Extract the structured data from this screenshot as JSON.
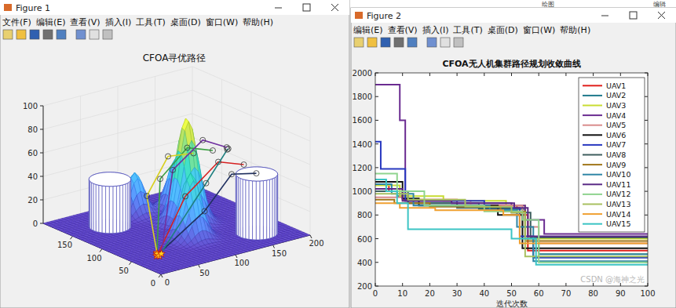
{
  "windows": [
    {
      "title": "Figure 1",
      "menu": [
        "文件(F)",
        "编辑(E)",
        "查看(V)",
        "插入(I)",
        "工具(T)",
        "桌面(D)",
        "窗口(W)",
        "帮助(H)"
      ]
    },
    {
      "title": "Figure 2",
      "menu": [
        "编辑(E)",
        "查看(V)",
        "插入(I)",
        "工具(T)",
        "桌面(D)",
        "窗口(W)",
        "帮助(H)"
      ]
    }
  ],
  "background_texts": [
    "绘图",
    "编辑"
  ],
  "watermark": "CSDN @海神之光",
  "chart_data": [
    {
      "type": "surface3d",
      "title": "CFOA寻优路径",
      "xlim": [
        0,
        200
      ],
      "xticks": [
        0,
        50,
        100,
        150,
        200
      ],
      "ylim": [
        0,
        200
      ],
      "yticks": [
        0,
        50,
        100,
        150
      ],
      "zlim": [
        0,
        100
      ],
      "zticks": [
        0,
        20,
        40,
        60,
        80,
        100
      ],
      "grid": true,
      "marker": "circle",
      "peaks": [
        {
          "x": 120,
          "y": 108,
          "height": 90,
          "spread": 12
        },
        {
          "x": 95,
          "y": 70,
          "height": 55,
          "spread": 11
        },
        {
          "x": 140,
          "y": 150,
          "height": 45,
          "spread": 10
        },
        {
          "x": 95,
          "y": 165,
          "height": 35,
          "spread": 10
        }
      ],
      "cylinders": [
        {
          "x": 50,
          "y": 150,
          "radius": 22,
          "height": 40
        },
        {
          "x": 160,
          "y": 40,
          "radius": 22,
          "height": 50
        }
      ],
      "paths": [
        {
          "color": "#d62020",
          "x": [
            35,
            80,
            140,
            190
          ],
          "y": [
            50,
            60,
            80,
            100
          ],
          "z": [
            0,
            40,
            55,
            40
          ]
        },
        {
          "color": "#3aa040",
          "x": [
            38,
            70,
            130,
            180
          ],
          "y": [
            55,
            90,
            120,
            140
          ],
          "z": [
            0,
            50,
            60,
            45
          ]
        },
        {
          "color": "#203060",
          "x": [
            32,
            90,
            150,
            195
          ],
          "y": [
            48,
            40,
            70,
            85
          ],
          "z": [
            0,
            30,
            45,
            35
          ]
        },
        {
          "color": "#d8d020",
          "x": [
            36,
            60,
            120,
            170
          ],
          "y": [
            52,
            100,
            140,
            160
          ],
          "z": [
            0,
            35,
            50,
            40
          ]
        },
        {
          "color": "#208080",
          "x": [
            34,
            100,
            160,
            185
          ],
          "y": [
            46,
            50,
            90,
            120
          ],
          "z": [
            0,
            50,
            60,
            50
          ]
        },
        {
          "color": "#7030a0",
          "x": [
            40,
            75,
            135,
            175
          ],
          "y": [
            50,
            75,
            100,
            110
          ],
          "z": [
            0,
            60,
            70,
            55
          ]
        }
      ]
    },
    {
      "type": "line",
      "title": "CFOA无人机集群路径规划收敛曲线",
      "x_label": "迭代次数",
      "xlim": [
        0,
        100
      ],
      "xticks": [
        0,
        10,
        20,
        30,
        40,
        50,
        60,
        70,
        80,
        90,
        100
      ],
      "ylim": [
        200,
        2000
      ],
      "yticks": [
        200,
        400,
        600,
        800,
        1000,
        1200,
        1400,
        1600,
        1800,
        2000
      ],
      "line_style": "step",
      "legend": "northeast",
      "grid": false,
      "series": [
        {
          "name": "UAV1",
          "color": "#e0201c",
          "x": [
            0,
            5,
            10,
            30,
            52,
            56,
            100
          ],
          "values": [
            1060,
            1000,
            930,
            880,
            800,
            500,
            500
          ]
        },
        {
          "name": "UAV2",
          "color": "#1f7a8c",
          "x": [
            0,
            8,
            12,
            38,
            55,
            60,
            100
          ],
          "values": [
            1000,
            960,
            900,
            850,
            600,
            470,
            470
          ]
        },
        {
          "name": "UAV3",
          "color": "#c8dc32",
          "x": [
            0,
            9,
            25,
            48,
            55,
            100
          ],
          "values": [
            1050,
            960,
            920,
            880,
            600,
            600
          ]
        },
        {
          "name": "UAV4",
          "color": "#6b2c91",
          "x": [
            0,
            9,
            11,
            30,
            50,
            55,
            62,
            100
          ],
          "values": [
            1900,
            1600,
            920,
            900,
            880,
            760,
            640,
            640
          ]
        },
        {
          "name": "UAV5",
          "color": "#d98c8c",
          "x": [
            0,
            10,
            35,
            54,
            60,
            100
          ],
          "values": [
            950,
            920,
            880,
            700,
            560,
            560
          ]
        },
        {
          "name": "UAV6",
          "color": "#111111",
          "x": [
            0,
            10,
            16,
            45,
            54,
            100
          ],
          "values": [
            1080,
            940,
            880,
            800,
            520,
            520
          ]
        },
        {
          "name": "UAV7",
          "color": "#2838c0",
          "x": [
            0,
            2,
            6,
            11,
            40,
            53,
            58,
            100
          ],
          "values": [
            1420,
            1190,
            1190,
            920,
            860,
            620,
            440,
            440
          ]
        },
        {
          "name": "UAV8",
          "color": "#3e5e5e",
          "x": [
            0,
            12,
            30,
            50,
            57,
            100
          ],
          "values": [
            1000,
            900,
            860,
            820,
            610,
            610
          ]
        },
        {
          "name": "UAV9",
          "color": "#a0761a",
          "x": [
            0,
            7,
            20,
            46,
            55,
            100
          ],
          "values": [
            930,
            900,
            870,
            830,
            580,
            580
          ]
        },
        {
          "name": "UAV10",
          "color": "#2f86a6",
          "x": [
            0,
            6,
            14,
            42,
            52,
            58,
            100
          ],
          "values": [
            1060,
            980,
            880,
            840,
            700,
            410,
            410
          ]
        },
        {
          "name": "UAV11",
          "color": "#5a2a86",
          "x": [
            0,
            10,
            28,
            51,
            56,
            100
          ],
          "values": [
            1020,
            920,
            900,
            860,
            620,
            620
          ]
        },
        {
          "name": "UAV12",
          "color": "#8fd48f",
          "x": [
            0,
            8,
            18,
            40,
            54,
            60,
            100
          ],
          "values": [
            1150,
            1000,
            880,
            830,
            760,
            400,
            400
          ]
        },
        {
          "name": "UAV13",
          "color": "#a8c060",
          "x": [
            0,
            12,
            33,
            50,
            55,
            100
          ],
          "values": [
            980,
            930,
            870,
            820,
            450,
            450
          ]
        },
        {
          "name": "UAV14",
          "color": "#f0a030",
          "x": [
            0,
            9,
            22,
            47,
            53,
            100
          ],
          "values": [
            900,
            860,
            840,
            800,
            560,
            560
          ]
        },
        {
          "name": "UAV15",
          "color": "#3cc4c4",
          "x": [
            0,
            4,
            8,
            12,
            45,
            50,
            59,
            100
          ],
          "values": [
            1100,
            1000,
            900,
            680,
            680,
            600,
            380,
            380
          ]
        }
      ]
    }
  ]
}
